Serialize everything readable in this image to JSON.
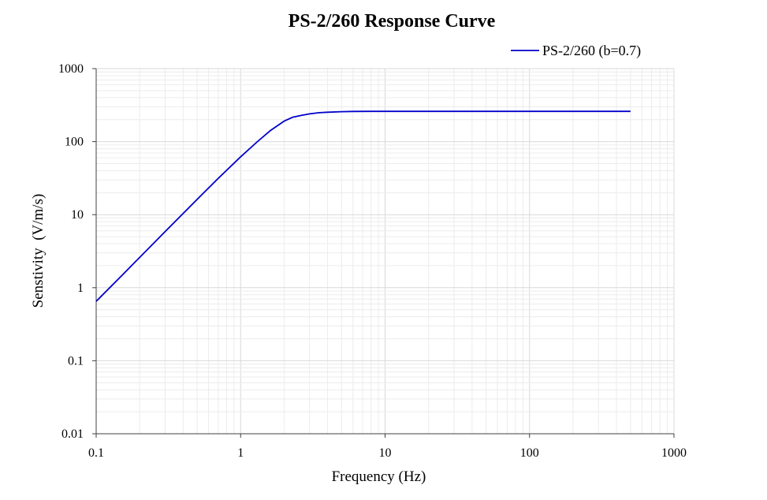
{
  "chart_data": {
    "type": "line",
    "title": "PS-2/260 Response Curve",
    "xlabel": "Frequency (Hz)",
    "ylabel": "Senstivity  (V/m/s)",
    "xscale": "log",
    "yscale": "log",
    "xlim": [
      0.1,
      1000
    ],
    "ylim": [
      0.01,
      1000
    ],
    "x_ticks": [
      0.1,
      1,
      10,
      100,
      1000
    ],
    "x_tick_labels": [
      "0.1",
      "1",
      "10",
      "100",
      "1000"
    ],
    "y_ticks": [
      0.01,
      0.1,
      1,
      10,
      100,
      1000
    ],
    "y_tick_labels": [
      "0.01",
      "0.1",
      "1",
      "10",
      "100",
      "1000"
    ],
    "grid": true,
    "legend_position": "top-right",
    "line_color": "#0000cc",
    "series": [
      {
        "name": "PS-2/260 (b=0.7)",
        "x": [
          0.1,
          0.15,
          0.2,
          0.3,
          0.5,
          0.7,
          1,
          1.3,
          1.6,
          2,
          2.3,
          2.6,
          3,
          3.5,
          4,
          5,
          6,
          8,
          10,
          20,
          50,
          100,
          200,
          500
        ],
        "y": [
          0.65,
          1.46,
          2.6,
          5.85,
          16.2,
          31.5,
          62,
          99,
          141,
          191,
          216,
          228,
          240,
          249,
          253,
          257,
          259,
          260,
          260,
          260,
          260,
          260,
          260,
          260
        ]
      }
    ]
  }
}
